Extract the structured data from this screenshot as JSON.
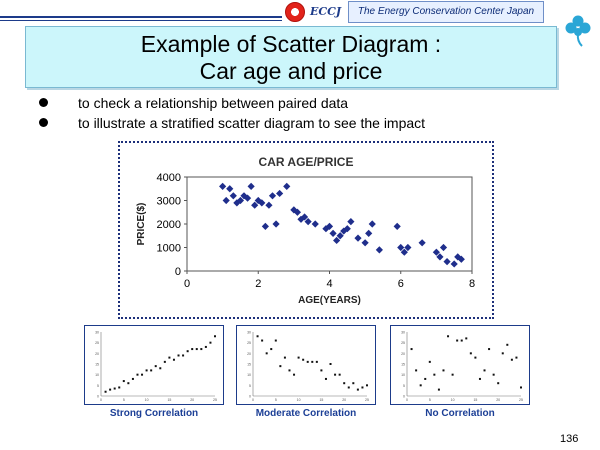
{
  "header": {
    "logo_text": "ECCJ",
    "organization": "The Energy Conservation Center Japan"
  },
  "title": {
    "line1": "Example of Scatter Diagram :",
    "line2": "Car age and price"
  },
  "bullets": [
    "to check  a relationship between paired data",
    "to illustrate a stratified scatter diagram to see the impact"
  ],
  "chart_data": [
    {
      "type": "scatter",
      "title": "CAR AGE/PRICE",
      "xlabel": "AGE(YEARS)",
      "ylabel": "PRICE($)",
      "xlim": [
        0,
        8
      ],
      "ylim": [
        0,
        4000
      ],
      "xticks": [
        0,
        2,
        4,
        6,
        8
      ],
      "yticks": [
        0,
        1000,
        2000,
        3000,
        4000
      ],
      "grid": false,
      "marker": "diamond",
      "color": "#1f2e8c",
      "points": [
        [
          1.0,
          3600
        ],
        [
          1.1,
          3000
        ],
        [
          1.2,
          3500
        ],
        [
          1.3,
          3200
        ],
        [
          1.4,
          2900
        ],
        [
          1.5,
          3000
        ],
        [
          1.6,
          3200
        ],
        [
          1.7,
          3100
        ],
        [
          1.8,
          3600
        ],
        [
          1.9,
          2800
        ],
        [
          2.0,
          3000
        ],
        [
          2.1,
          2900
        ],
        [
          2.2,
          1900
        ],
        [
          2.3,
          2800
        ],
        [
          2.4,
          3200
        ],
        [
          2.5,
          2000
        ],
        [
          2.6,
          3300
        ],
        [
          2.8,
          3600
        ],
        [
          3.0,
          2600
        ],
        [
          3.1,
          2500
        ],
        [
          3.2,
          2200
        ],
        [
          3.3,
          2300
        ],
        [
          3.4,
          2100
        ],
        [
          3.6,
          2000
        ],
        [
          3.9,
          1800
        ],
        [
          4.0,
          1900
        ],
        [
          4.1,
          1600
        ],
        [
          4.2,
          1300
        ],
        [
          4.3,
          1500
        ],
        [
          4.4,
          1700
        ],
        [
          4.5,
          1800
        ],
        [
          4.6,
          2100
        ],
        [
          4.8,
          1400
        ],
        [
          5.0,
          1200
        ],
        [
          5.1,
          1600
        ],
        [
          5.2,
          2000
        ],
        [
          5.4,
          900
        ],
        [
          5.9,
          1900
        ],
        [
          6.0,
          1000
        ],
        [
          6.1,
          800
        ],
        [
          6.2,
          1000
        ],
        [
          6.6,
          1200
        ],
        [
          7.0,
          800
        ],
        [
          7.1,
          600
        ],
        [
          7.2,
          1000
        ],
        [
          7.3,
          400
        ],
        [
          7.5,
          300
        ],
        [
          7.6,
          600
        ],
        [
          7.7,
          500
        ]
      ]
    },
    {
      "type": "scatter",
      "label": "Strong Correlation",
      "xlim": [
        0,
        25
      ],
      "ylim": [
        0,
        30
      ],
      "xticks": [
        0,
        5,
        10,
        15,
        20,
        25
      ],
      "yticks": [
        0,
        5,
        10,
        15,
        20,
        25,
        30
      ],
      "points": [
        [
          1,
          2
        ],
        [
          2,
          3
        ],
        [
          3,
          3.5
        ],
        [
          4,
          4
        ],
        [
          5,
          7
        ],
        [
          6,
          6
        ],
        [
          7,
          8
        ],
        [
          8,
          10
        ],
        [
          9,
          10
        ],
        [
          10,
          12
        ],
        [
          11,
          12
        ],
        [
          12,
          14
        ],
        [
          13,
          13
        ],
        [
          14,
          16
        ],
        [
          15,
          18
        ],
        [
          16,
          17
        ],
        [
          17,
          19
        ],
        [
          18,
          19
        ],
        [
          19,
          21
        ],
        [
          20,
          22
        ],
        [
          21,
          22
        ],
        [
          22,
          22
        ],
        [
          23,
          23
        ],
        [
          24,
          25
        ],
        [
          25,
          28
        ]
      ]
    },
    {
      "type": "scatter",
      "label": "Moderate Correlation",
      "xlim": [
        0,
        25
      ],
      "ylim": [
        0,
        30
      ],
      "xticks": [
        0,
        5,
        10,
        15,
        20,
        25
      ],
      "yticks": [
        0,
        5,
        10,
        15,
        20,
        25,
        30
      ],
      "points": [
        [
          1,
          28
        ],
        [
          2,
          26
        ],
        [
          3,
          20
        ],
        [
          4,
          22
        ],
        [
          5,
          26
        ],
        [
          6,
          14
        ],
        [
          7,
          18
        ],
        [
          8,
          12
        ],
        [
          9,
          10
        ],
        [
          10,
          18
        ],
        [
          11,
          17
        ],
        [
          12,
          16
        ],
        [
          13,
          16
        ],
        [
          14,
          16
        ],
        [
          15,
          12
        ],
        [
          16,
          8
        ],
        [
          17,
          15
        ],
        [
          18,
          10
        ],
        [
          19,
          10
        ],
        [
          20,
          6
        ],
        [
          21,
          4
        ],
        [
          22,
          6
        ],
        [
          23,
          3
        ],
        [
          24,
          4
        ],
        [
          25,
          5
        ]
      ]
    },
    {
      "type": "scatter",
      "label": "No Correlation",
      "xlim": [
        0,
        25
      ],
      "ylim": [
        0,
        30
      ],
      "xticks": [
        0,
        5,
        10,
        15,
        20,
        25
      ],
      "yticks": [
        0,
        5,
        10,
        15,
        20,
        25,
        30
      ],
      "points": [
        [
          1,
          22
        ],
        [
          2,
          12
        ],
        [
          3,
          5
        ],
        [
          4,
          8
        ],
        [
          5,
          16
        ],
        [
          6,
          10
        ],
        [
          7,
          3
        ],
        [
          8,
          12
        ],
        [
          9,
          28
        ],
        [
          10,
          10
        ],
        [
          11,
          26
        ],
        [
          12,
          26
        ],
        [
          13,
          27
        ],
        [
          14,
          20
        ],
        [
          15,
          18
        ],
        [
          16,
          8
        ],
        [
          17,
          12
        ],
        [
          18,
          22
        ],
        [
          19,
          10
        ],
        [
          20,
          6
        ],
        [
          21,
          20
        ],
        [
          22,
          24
        ],
        [
          23,
          17
        ],
        [
          24,
          18
        ],
        [
          25,
          4
        ]
      ]
    }
  ],
  "page_number": "136",
  "colors": {
    "title_bg": "#ccf6fb",
    "accent": "#1d3b8a",
    "marker": "#1f2e8c",
    "label": "#1c3f96"
  }
}
